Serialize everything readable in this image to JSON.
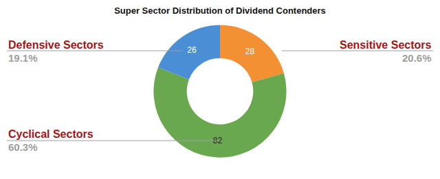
{
  "chart_data": {
    "type": "pie",
    "title": "Super Sector Distribution of Dividend Contenders",
    "categories": [
      "Sensitive Sectors",
      "Cyclical Sectors",
      "Defensive Sectors"
    ],
    "values": [
      28,
      82,
      26
    ],
    "percent_labels": [
      "20.6%",
      "60.3%",
      "19.1%"
    ],
    "colors": [
      "#f39033",
      "#6aa84f",
      "#4a8fd6"
    ],
    "data_labels": true
  }
}
